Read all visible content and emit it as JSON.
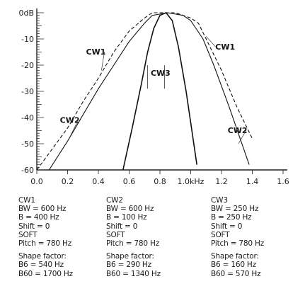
{
  "chart_data": {
    "type": "line",
    "title": "",
    "xlabel": "",
    "ylabel": "",
    "xlim": [
      0,
      1.6
    ],
    "ylim": [
      -60,
      0
    ],
    "x_ticks": [
      "0.0",
      "0.2",
      "0.4",
      "0.6",
      "0.8",
      "1.0kHz",
      "1.2",
      "1.4",
      "1.6"
    ],
    "y_ticks": [
      "0dB",
      "-10",
      "-20",
      "-30",
      "-40",
      "-50",
      "-60"
    ],
    "grid": false,
    "series": [
      {
        "name": "CW1",
        "x": [
          0.0,
          0.1,
          0.2,
          0.3,
          0.4,
          0.5,
          0.6,
          0.7,
          0.75,
          0.9,
          1.0,
          1.05,
          1.1,
          1.2,
          1.3,
          1.4
        ],
        "y": [
          -60,
          -52,
          -44,
          -34,
          -25,
          -15,
          -7,
          -2,
          0,
          0,
          -2,
          -4,
          -10,
          -22,
          -36,
          -48
        ]
      },
      {
        "name": "CW2",
        "x": [
          0.08,
          0.2,
          0.3,
          0.4,
          0.5,
          0.6,
          0.7,
          0.75,
          0.85,
          0.95,
          1.0,
          1.08,
          1.15,
          1.25,
          1.38
        ],
        "y": [
          -60,
          -49,
          -39,
          -29,
          -20,
          -11,
          -4,
          -1,
          0,
          -1,
          -3,
          -10,
          -20,
          -36,
          -58
        ]
      },
      {
        "name": "CW3",
        "x": [
          0.56,
          0.62,
          0.68,
          0.72,
          0.76,
          0.8,
          0.84,
          0.88,
          0.92,
          0.97,
          1.04
        ],
        "y": [
          -60,
          -44,
          -27,
          -15,
          -6,
          -1,
          0,
          -3,
          -13,
          -30,
          -58
        ]
      }
    ],
    "curve_labels": [
      "CW1",
      "CW2",
      "CW3",
      "CW1",
      "CW2"
    ]
  },
  "params": [
    {
      "name": "CW1",
      "bw": "BW = 600 Hz",
      "b": "B = 400 Hz",
      "shift": "Shift = 0",
      "soft": "SOFT",
      "pitch": "Pitch = 780 Hz",
      "shape": "Shape factor:",
      "b6": "B6 = 540 Hz",
      "b60": "B60 = 1700 Hz"
    },
    {
      "name": "CW2",
      "bw": "BW = 600 Hz",
      "b": "B = 100 Hz",
      "shift": "Shift = 0",
      "soft": "SOFT",
      "pitch": "Pitch = 780 Hz",
      "shape": "Shape factor:",
      "b6": "B6 = 290 Hz",
      "b60": "B60 = 1340 Hz"
    },
    {
      "name": "CW3",
      "bw": "BW = 250 Hz",
      "b": "B = 250 Hz",
      "shift": "Shift = 0",
      "soft": "SOFT",
      "pitch": "Pitch = 780 Hz",
      "shape": "Shape factor:",
      "b6": "B6 = 160 Hz",
      "b60": "B60 = 570 Hz"
    }
  ]
}
